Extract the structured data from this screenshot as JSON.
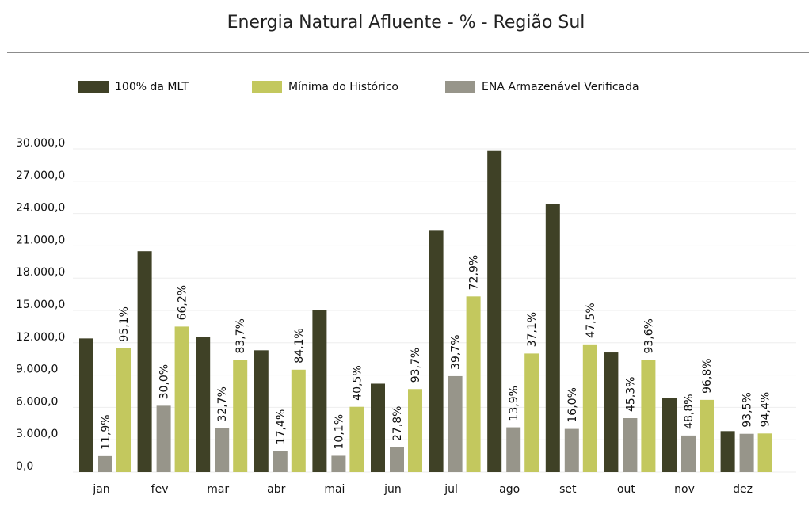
{
  "title": "Energia Natural Afluente - % - Região Sul",
  "colors": {
    "mlt": "#3f4126",
    "min": "#c3c85e",
    "ena": "#97958a",
    "grid": "#eeeeee"
  },
  "chart_data": {
    "type": "bar",
    "title": "Energia Natural Afluente - % - Região Sul",
    "xlabel": "",
    "ylabel": "",
    "legend_position": "top",
    "grid": true,
    "ylim": [
      0,
      30000
    ],
    "yticks": [
      "0,0",
      "3.000,0",
      "6.000,0",
      "9.000,0",
      "12.000,0",
      "15.000,0",
      "18.000,0",
      "21.000,0",
      "24.000,0",
      "27.000,0",
      "30.000,0"
    ],
    "categories": [
      "jan",
      "fev",
      "mar",
      "abr",
      "mai",
      "jun",
      "jul",
      "ago",
      "set",
      "out",
      "nov",
      "dez"
    ],
    "series": [
      {
        "name": "100% da MLT",
        "values": [
          12400,
          20500,
          12500,
          11300,
          15000,
          8200,
          22400,
          29800,
          24900,
          11100,
          6900,
          3800
        ]
      },
      {
        "name": "ENA Armazenável Verificada",
        "values": [
          1480,
          6150,
          4080,
          1970,
          1510,
          2280,
          8900,
          4150,
          4000,
          5000,
          3390,
          3550
        ],
        "labels": [
          "11,9%",
          "30,0%",
          "32,7%",
          "17,4%",
          "10,1%",
          "27,8%",
          "39,7%",
          "13,9%",
          "16,0%",
          "45,3%",
          "48,8%",
          "93,5%"
        ]
      },
      {
        "name": "Mínima do Histórico",
        "values": [
          11500,
          13500,
          10400,
          9500,
          6050,
          7700,
          16300,
          11000,
          11850,
          10400,
          6700,
          3580
        ],
        "labels": [
          "95,1%",
          "66,2%",
          "83,7%",
          "84,1%",
          "40,5%",
          "93,7%",
          "72,9%",
          "37,1%",
          "47,5%",
          "93,6%",
          "96,8%",
          "94,4%"
        ]
      }
    ]
  },
  "legend": [
    {
      "label": "100% da MLT",
      "color": "#3f4126"
    },
    {
      "label": "Mínima do Histórico",
      "color": "#c3c85e"
    },
    {
      "label": "ENA Armazenável Verificada",
      "color": "#97958a"
    }
  ]
}
